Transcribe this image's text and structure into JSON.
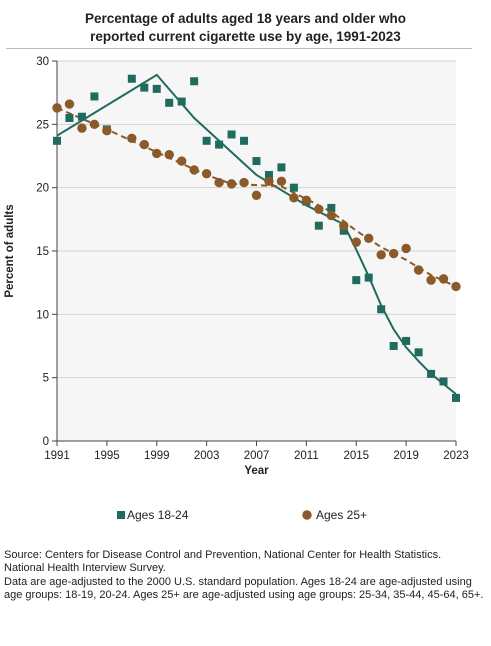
{
  "title_lines": [
    "Percentage of adults aged 18 years and older who",
    "reported current cigarette use by age, 1991-2023"
  ],
  "source_note": "Source: Centers for Disease Control and Prevention, National Center for Health Statistics. National Health Interview Survey.",
  "data_note": "Data are age-adjusted to the 2000 U.S. standard population. Ages 18-24 are age-adjusted using age groups: 18-19, 20-24. Ages 25+ are age-adjusted using age groups: 25-34, 35-44, 45-64, 65+.",
  "chart_data": {
    "type": "scatter",
    "xlabel": "Year",
    "ylabel": "Percent of adults",
    "xlim": [
      1991,
      2023
    ],
    "ylim": [
      0,
      30
    ],
    "x_ticks": [
      1991,
      1995,
      1999,
      2003,
      2007,
      2011,
      2015,
      2019,
      2023
    ],
    "y_ticks": [
      0,
      5,
      10,
      15,
      20,
      25,
      30
    ],
    "grid": "horizontal",
    "legend_position": "bottom",
    "series": [
      {
        "name": "Ages 18-24",
        "marker": "square",
        "color": "#1f6b5e",
        "points": [
          [
            1991,
            23.7
          ],
          [
            1992,
            25.5
          ],
          [
            1993,
            25.6
          ],
          [
            1994,
            27.2
          ],
          [
            1995,
            24.6
          ],
          [
            1997,
            28.6
          ],
          [
            1998,
            27.9
          ],
          [
            1999,
            27.8
          ],
          [
            2000,
            26.7
          ],
          [
            2001,
            26.8
          ],
          [
            2002,
            28.4
          ],
          [
            2003,
            23.7
          ],
          [
            2004,
            23.4
          ],
          [
            2005,
            24.2
          ],
          [
            2006,
            23.7
          ],
          [
            2007,
            22.1
          ],
          [
            2008,
            21.0
          ],
          [
            2009,
            21.6
          ],
          [
            2010,
            20.0
          ],
          [
            2011,
            18.9
          ],
          [
            2012,
            17.0
          ],
          [
            2013,
            18.4
          ],
          [
            2014,
            16.6
          ],
          [
            2015,
            12.7
          ],
          [
            2016,
            12.9
          ],
          [
            2017,
            10.4
          ],
          [
            2018,
            7.5
          ],
          [
            2019,
            7.9
          ],
          [
            2020,
            7.0
          ],
          [
            2021,
            5.3
          ],
          [
            2022,
            4.7
          ],
          [
            2023,
            3.4
          ]
        ],
        "trend": [
          [
            1991,
            24.1
          ],
          [
            1999,
            28.9
          ],
          [
            2002,
            25.5
          ],
          [
            2007,
            21.0
          ],
          [
            2011,
            18.6
          ],
          [
            2014,
            17.1
          ],
          [
            2015,
            15.1
          ],
          [
            2016,
            13.0
          ],
          [
            2017,
            10.7
          ],
          [
            2018,
            8.8
          ],
          [
            2019,
            7.4
          ],
          [
            2020,
            6.3
          ],
          [
            2021,
            5.3
          ],
          [
            2022,
            4.5
          ],
          [
            2023,
            3.7
          ]
        ]
      },
      {
        "name": "Ages 25+",
        "marker": "circle",
        "color": "#8b5a2b",
        "points": [
          [
            1991,
            26.3
          ],
          [
            1992,
            26.6
          ],
          [
            1993,
            24.7
          ],
          [
            1994,
            25.0
          ],
          [
            1995,
            24.5
          ],
          [
            1997,
            23.9
          ],
          [
            1998,
            23.4
          ],
          [
            1999,
            22.7
          ],
          [
            2000,
            22.6
          ],
          [
            2001,
            22.1
          ],
          [
            2002,
            21.4
          ],
          [
            2003,
            21.1
          ],
          [
            2004,
            20.4
          ],
          [
            2005,
            20.3
          ],
          [
            2006,
            20.4
          ],
          [
            2007,
            19.4
          ],
          [
            2008,
            20.5
          ],
          [
            2009,
            20.5
          ],
          [
            2010,
            19.2
          ],
          [
            2011,
            19.0
          ],
          [
            2012,
            18.3
          ],
          [
            2013,
            17.8
          ],
          [
            2014,
            17.0
          ],
          [
            2015,
            15.7
          ],
          [
            2016,
            16.0
          ],
          [
            2017,
            14.7
          ],
          [
            2018,
            14.8
          ],
          [
            2019,
            15.2
          ],
          [
            2020,
            13.5
          ],
          [
            2021,
            12.7
          ],
          [
            2022,
            12.8
          ],
          [
            2023,
            12.2
          ]
        ],
        "trend": [
          [
            1991,
            26.3
          ],
          [
            1995,
            24.6
          ],
          [
            1999,
            22.8
          ],
          [
            2003,
            21.0
          ],
          [
            2005,
            20.3
          ],
          [
            2007,
            20.2
          ],
          [
            2009,
            20.1
          ],
          [
            2011,
            19.1
          ],
          [
            2013,
            18.1
          ],
          [
            2015,
            16.6
          ],
          [
            2017,
            15.3
          ],
          [
            2019,
            14.3
          ],
          [
            2021,
            13.1
          ],
          [
            2023,
            12.2
          ]
        ]
      }
    ]
  }
}
